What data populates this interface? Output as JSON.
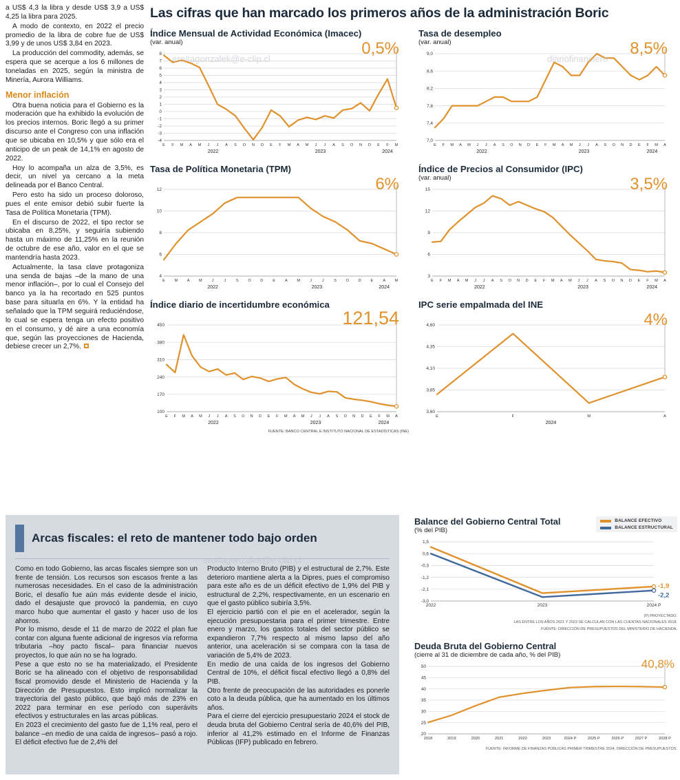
{
  "watermarks": {
    "w1": "ero#agonzalek@e-clip.cl",
    "w2": "diariofinanciero",
    "w3": "ero#agonzalek@e-clip.cl"
  },
  "main": {
    "title": "Las cifras que han marcado los primeros años de la administración Boric"
  },
  "left_column": {
    "paragraphs": [
      "a US$ 4,3 la libra y desde US$ 3,9 a US$ 4,25 la libra para 2025.",
      "A modo de contexto, en 2022 el precio promedio de la libra de cobre fue de US$ 3,99 y de unos US$ 3,84 en 2023.",
      "La producción del commodity, además, se espera que se acerque a los 6 millones de toneladas en 2025, según la ministra de Minería, Aurora Williams."
    ],
    "heading": "Menor inflación",
    "paragraphs2": [
      "Otra buena noticia para el Gobierno es la moderación que ha exhibido la evolución de los precios internos. Boric llegó a su primer discurso ante el Congreso con una inflación que se ubicaba en 10,5% y que sólo era el anticipo de un peak de 14,1% en agosto de 2022.",
      "Hoy lo acompaña un alza de 3,5%, es decir, un nivel ya cercano a la meta delineada por el Banco Central.",
      "Pero esto ha sido un proceso doloroso, pues el ente emisor debió subir fuerte la Tasa de Política Monetaria (TPM).",
      "En el discurso de 2022, el tipo rector se ubicaba en 8,25%, y seguiría subiendo hasta un máximo de 11,25% en la reunión de octubre de ese año, valor en el que se mantendría hasta 2023.",
      "Actualmente, la tasa clave protagoniza una senda de bajas –de la mano de una menor inflación–, por lo cual el Consejo del banco ya la ha recortado en 525 puntos base para situarla en 6%. Y la entidad ha señalado que la TPM seguirá reduciéndose, lo cual se espera tenga un efecto positivo en el consumo, y dé aire a una economía que, según las proyecciones de Hacienda, debiese crecer un 2,7%."
    ]
  },
  "fiscal_article": {
    "title": "Arcas fiscales: el reto de mantener todo bajo orden",
    "col1": [
      "Como en todo Gobierno, las arcas fiscales siempre son un frente de tensión. Los recursos son escasos frente a las numerosas necesidades. En el caso de la administración Boric, el desafío fue aún más evidente desde el inicio, dado el desajuste que provocó la pandemia, en cuyo marco hubo que aumentar el gasto y hacer uso de los ahorros.",
      "Por lo mismo, desde el 11 de marzo de 2022 el plan fue contar con alguna fuente adicional de ingresos vía reforma tributaria –hoy pacto fiscal– para financiar nuevos proyectos, lo que aún no se ha logrado.",
      "Pese a que esto no se ha materializado, el Presidente Boric se ha alineado con el objetivo de responsabilidad fiscal promovido desde el Ministerio de Hacienda y la Dirección de Presupuestos. Esto implicó normalizar la trayectoria del gasto público, que bajó más de 23% en 2022 para terminar en ese período con superávits efectivos y estructurales en las arcas públicas.",
      "En 2023 el crecimiento del gasto fue de 1,1% real, pero el balance –en medio de una caída de ingresos– pasó a rojo. El déficit efectivo fue de 2,4% del"
    ],
    "col2": [
      "Producto Interno Bruto (PIB) y el estructural de 2,7%. Este deterioro mantiene alerta a la Dipres, pues el compromiso para este año es de un déficit efectivo de 1,9% del PIB y estructural de 2,2%, respectivamente, en un escenario en que el gasto público subiría 3,5%.",
      "El ejercicio partió con el pie en el acelerador, según la ejecución presupuestaria para el primer trimestre. Entre enero y marzo, los gastos totales del sector público se expandieron 7,7% respecto al mismo lapso del año anterior, una aceleración si se compara con la tasa de variación de 5,4% de 2023.",
      "En medio de una caída de los ingresos del Gobierno Central de 10%, el déficit fiscal efectivo llegó a 0,8% del PIB.",
      "Otro frente de preocupación de las autoridades es ponerle coto a la deuda pública, que ha aumentado en los últimos años.",
      "Para el cierre del ejercicio presupuestario 2024 el stock de deuda bruta del Gobierno Central sería de 40,6% del PIB, inferior al 41,2% estimado en el Informe de Finanzas Públicas (IFP) publicado en febrero."
    ]
  },
  "chart_data": [
    {
      "type": "line",
      "title": "Índice Mensual de Actividad Económica (Imacec)",
      "subtitle": "(var. anual)",
      "big_label": "0,5%",
      "ylim": [
        -4,
        8
      ],
      "y_ticks": [
        8,
        7,
        6,
        5,
        4,
        3,
        2,
        1,
        0,
        -1,
        -2,
        -3,
        -4
      ],
      "y_tick_labels": [
        "8",
        "7",
        "6",
        "5",
        "4",
        "3",
        "2",
        "1",
        "0",
        "-1",
        "-2",
        "-3",
        "-4"
      ],
      "x_labels": [
        "E",
        "F",
        "M",
        "A",
        "M",
        "J",
        "J",
        "A",
        "S",
        "O",
        "N",
        "D",
        "E",
        "F",
        "M",
        "A",
        "M",
        "J",
        "J",
        "A",
        "S",
        "O",
        "N",
        "D",
        "E",
        "F",
        "M"
      ],
      "year_labels": [
        {
          "text": "2022",
          "start": 0,
          "end": 11
        },
        {
          "text": "2023",
          "start": 12,
          "end": 23
        },
        {
          "text": "2024",
          "start": 24,
          "end": 26
        }
      ],
      "series": [
        {
          "name": "Imacec",
          "color": "#E0912C",
          "values": [
            7.8,
            6.8,
            7.1,
            6.7,
            6.1,
            3.6,
            1.0,
            0.3,
            -0.6,
            -2.3,
            -3.9,
            -2.2,
            0.2,
            -0.6,
            -2.1,
            -1.2,
            -0.8,
            -1.1,
            -0.6,
            -0.9,
            0.2,
            0.4,
            1.2,
            0.1,
            2.4,
            4.5,
            0.5
          ]
        }
      ],
      "ml": 20
    },
    {
      "type": "line",
      "title": "Tasa de desempleo",
      "subtitle": "(var. anual)",
      "big_label": "8,5%",
      "ylim": [
        7.0,
        9.0
      ],
      "y_ticks": [
        9.0,
        8.6,
        8.2,
        7.8,
        7.4,
        7.0
      ],
      "y_tick_labels": [
        "9,0",
        "8,6",
        "8,2",
        "7,8",
        "7,4",
        "7,0"
      ],
      "x_labels": [
        "E",
        "F",
        "M",
        "A",
        "M",
        "J",
        "J",
        "A",
        "S",
        "O",
        "N",
        "D",
        "E",
        "F",
        "M",
        "A",
        "M",
        "J",
        "J",
        "A",
        "S",
        "O",
        "N",
        "D",
        "E",
        "F",
        "M",
        "A"
      ],
      "year_labels": [
        {
          "text": "2022",
          "start": 0,
          "end": 11
        },
        {
          "text": "2023",
          "start": 12,
          "end": 23
        },
        {
          "text": "2024",
          "start": 24,
          "end": 27
        }
      ],
      "series": [
        {
          "name": "Tasa de desempleo",
          "color": "#E0912C",
          "values": [
            7.3,
            7.5,
            7.8,
            7.8,
            7.8,
            7.8,
            7.9,
            8.0,
            8.0,
            7.9,
            7.9,
            7.9,
            8.0,
            8.4,
            8.8,
            8.7,
            8.5,
            8.5,
            8.8,
            9.0,
            8.9,
            8.9,
            8.7,
            8.5,
            8.4,
            8.5,
            8.7,
            8.5
          ]
        }
      ],
      "ml": 24
    },
    {
      "type": "line",
      "title": "Tasa de Política Monetaria (TPM)",
      "subtitle": "",
      "big_label": "6%",
      "ylim": [
        4,
        12
      ],
      "y_ticks": [
        12,
        10,
        8,
        6,
        4
      ],
      "y_tick_labels": [
        "12",
        "10",
        "8",
        "6",
        "4"
      ],
      "x_labels": [
        "E",
        "M",
        "A",
        "M",
        "J",
        "J",
        "S",
        "O",
        "D",
        "E",
        "A",
        "M",
        "J",
        "J",
        "S",
        "O",
        "D",
        "E",
        "A",
        "M"
      ],
      "year_labels": [
        {
          "text": "2022",
          "start": 0,
          "end": 8
        },
        {
          "text": "2023",
          "start": 9,
          "end": 16
        },
        {
          "text": "2024",
          "start": 17,
          "end": 19
        }
      ],
      "series": [
        {
          "name": "TPM",
          "color": "#E0912C",
          "values": [
            5.5,
            7.0,
            8.25,
            9.0,
            9.75,
            10.75,
            11.25,
            11.25,
            11.25,
            11.25,
            11.25,
            11.25,
            10.25,
            9.5,
            9.0,
            8.25,
            7.25,
            7.0,
            6.5,
            6.0
          ]
        }
      ],
      "ml": 20
    },
    {
      "type": "line",
      "title": "Índice de Precios al Consumidor (IPC)",
      "subtitle": "(var. anual)",
      "big_label": "3,5%",
      "ylim": [
        3,
        15
      ],
      "y_ticks": [
        15,
        12,
        9,
        6,
        3
      ],
      "y_tick_labels": [
        "15",
        "12",
        "9",
        "6",
        "3"
      ],
      "x_labels": [
        "E",
        "F",
        "M",
        "A",
        "M",
        "J",
        "J",
        "A",
        "S",
        "O",
        "N",
        "D",
        "E",
        "F",
        "M",
        "A",
        "M",
        "J",
        "J",
        "A",
        "S",
        "O",
        "N",
        "D",
        "E",
        "F",
        "M",
        "A"
      ],
      "year_labels": [
        {
          "text": "2022",
          "start": 0,
          "end": 11
        },
        {
          "text": "2023",
          "start": 12,
          "end": 23
        },
        {
          "text": "2024",
          "start": 24,
          "end": 27
        }
      ],
      "series": [
        {
          "name": "IPC",
          "color": "#E0912C",
          "values": [
            7.7,
            7.8,
            9.4,
            10.5,
            11.5,
            12.5,
            13.1,
            14.1,
            13.7,
            12.8,
            13.3,
            12.8,
            12.3,
            11.9,
            11.1,
            9.9,
            8.7,
            7.6,
            6.5,
            5.3,
            5.1,
            5.0,
            4.8,
            3.9,
            3.8,
            3.6,
            3.7,
            3.5
          ]
        }
      ],
      "ml": 20
    },
    {
      "type": "line",
      "title": "Índice diario de incertidumbre económica",
      "subtitle": "",
      "big_label": "121,54",
      "ylim": [
        100,
        450
      ],
      "y_ticks": [
        450,
        380,
        310,
        240,
        170,
        100
      ],
      "y_tick_labels": [
        "450",
        "380",
        "310",
        "240",
        "170",
        "100"
      ],
      "x_labels": [
        "E",
        "F",
        "M",
        "A",
        "M",
        "J",
        "J",
        "A",
        "S",
        "O",
        "N",
        "D",
        "E",
        "F",
        "M",
        "A",
        "M",
        "J",
        "J",
        "A",
        "S",
        "O",
        "N",
        "D",
        "E",
        "F",
        "M",
        "A"
      ],
      "year_labels": [
        {
          "text": "2022",
          "start": 0,
          "end": 11
        },
        {
          "text": "2023",
          "start": 12,
          "end": 23
        },
        {
          "text": "2024",
          "start": 24,
          "end": 27
        }
      ],
      "series": [
        {
          "name": "Incertidumbre económica",
          "color": "#E0912C",
          "values": [
            290,
            258,
            410,
            325,
            280,
            262,
            272,
            248,
            256,
            230,
            242,
            236,
            222,
            232,
            238,
            210,
            192,
            178,
            172,
            182,
            180,
            156,
            150,
            146,
            140,
            132,
            126,
            121.54
          ]
        }
      ],
      "ml": 24,
      "source": "FUENTE: BANCO CENTRAL E INSTITUTO NACIONAL DE ESTADÍSTICAS (INE)"
    },
    {
      "type": "line",
      "title": "IPC serie empalmada del INE",
      "subtitle": "",
      "big_label": "4%",
      "ylim": [
        3.6,
        4.6
      ],
      "y_ticks": [
        4.6,
        4.35,
        4.1,
        3.85,
        3.6
      ],
      "y_tick_labels": [
        "4,60",
        "4,35",
        "4,10",
        "3,85",
        "3,60"
      ],
      "x_labels": [
        "E",
        "F",
        "M",
        "A"
      ],
      "year_labels": [
        {
          "text": "2024",
          "start": 0,
          "end": 3
        }
      ],
      "series": [
        {
          "name": "IPC empalmado",
          "color": "#E0912C",
          "values": [
            3.8,
            4.5,
            3.7,
            4.0
          ]
        }
      ],
      "ml": 27
    },
    {
      "type": "line",
      "title": "Balance del Gobierno Central Total",
      "subtitle": "(% del PIB)",
      "ylim": [
        -3.0,
        1.5
      ],
      "y_ticks": [
        1.5,
        0.6,
        -0.3,
        -1.2,
        -2.1,
        -3.0
      ],
      "y_tick_labels": [
        "1,5",
        "0,6",
        "-0,3",
        "-1,2",
        "-2,1",
        "-3,0"
      ],
      "x_labels": [
        "2022",
        "2023",
        "2024 P"
      ],
      "series": [
        {
          "name": "BALANCE EFECTIVO",
          "color": "#E0912C",
          "values": [
            1.1,
            -2.4,
            -1.9
          ],
          "end_label": "-1,9",
          "label_dy": -1
        },
        {
          "name": "BALANCE ESTRUCTURAL",
          "color": "#41699B",
          "values": [
            0.6,
            -2.7,
            -2.2
          ],
          "end_label": "-2,2",
          "label_dy": 7
        }
      ],
      "pointer": false,
      "ml": 24,
      "mr": 34,
      "xfs": 6.6,
      "lw": 2.4,
      "footnotes": [
        "(P) PROYECTADO.",
        "LAS ENTRE LOS AÑOS 2021 Y 2023 SE CALCULAN  CON LAS CUENTAS NACIONALES 2018.",
        "FUENTE: DIRECCIÓN DE PRESUPUESTOS DEL MINISTERIO DE HACIENDA."
      ]
    },
    {
      "type": "line",
      "title": "Deuda Bruta del Gobierno Central",
      "subtitle": "(cierre al 31 de diciembre de cada año, % del PIB)",
      "big_label": "40,8%",
      "ylim": [
        20,
        50
      ],
      "y_ticks": [
        50,
        45,
        40,
        35,
        30,
        25,
        20
      ],
      "y_tick_labels": [
        "50",
        "45",
        "40",
        "35",
        "30",
        "25",
        "20"
      ],
      "x_labels": [
        "2018",
        "2019",
        "2020",
        "2021",
        "2022",
        "2023",
        "2024 P",
        "2025 P",
        "2026 P",
        "2027 P",
        "2028 P"
      ],
      "series": [
        {
          "name": "Deuda bruta",
          "color": "#E0912C",
          "values": [
            25.1,
            28.3,
            32.5,
            36.3,
            38.0,
            39.4,
            40.6,
            41.0,
            41.1,
            41.0,
            40.8
          ]
        }
      ],
      "ml": 20,
      "mr": 18,
      "xfs": 5.6,
      "footnote": "FUENTE: INFORME DE FINANZAS PÚBLICAS PRIMER TRIMESTRE 2024, DIRECCIÓN DE PRESUPUESTOS."
    }
  ]
}
